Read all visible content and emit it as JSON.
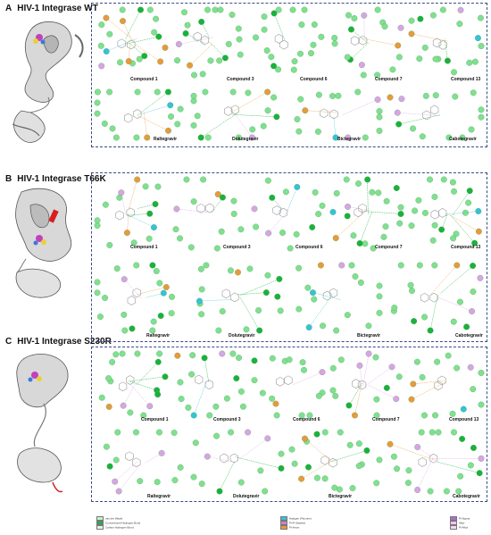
{
  "panels": [
    {
      "letter": "A",
      "title": "HIV-1 Integrase WT"
    },
    {
      "letter": "B",
      "title": "HIV-1 Integrase T66K"
    },
    {
      "letter": "C",
      "title": "HIV-1 Integrase S230R"
    }
  ],
  "compounds_row1": [
    "Compound 1",
    "Compound 3",
    "Compound 6",
    "Compound 7",
    "Compound 13"
  ],
  "compounds_row2": [
    "Raltegravir",
    "Dolutegravir",
    "Bictegravir",
    "Cabotegravir"
  ],
  "legend": [
    {
      "label": "van der Waals",
      "color": "#c8f0c8"
    },
    {
      "label": "Conventional Hydrogen Bond",
      "color": "#22b14c"
    },
    {
      "label": "Carbon Hydrogen Bond",
      "color": "#e6f5e6"
    },
    {
      "label": "Halogen (Fluorine)",
      "color": "#35c3d6"
    },
    {
      "label": "Pi-Pi Stacked",
      "color": "#d77bd7"
    },
    {
      "label": "Pi-Anion",
      "color": "#e89a3a"
    },
    {
      "label": "Pi-Sigma",
      "color": "#b06ad0"
    },
    {
      "label": "Alkyl",
      "color": "#f2c4f2"
    },
    {
      "label": "Pi-Alkyl",
      "color": "#f7d8f7"
    }
  ],
  "colors": {
    "frame": "#3a4a8a",
    "vdw": "#7fe08f",
    "hbond": "#19b23b",
    "pi_anion": "#e89a3a",
    "halogen": "#35c3d6",
    "alkyl": "#d9a3e6"
  }
}
